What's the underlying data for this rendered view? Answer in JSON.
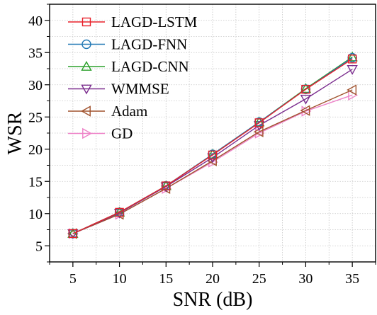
{
  "chart_data": {
    "type": "line",
    "title": "",
    "xlabel": "SNR (dB)",
    "ylabel": "WSR",
    "xlim": [
      2.5,
      37.5
    ],
    "ylim": [
      2.5,
      42.5
    ],
    "xticks": [
      5,
      10,
      15,
      20,
      25,
      30,
      35
    ],
    "yticks": [
      5,
      10,
      15,
      20,
      25,
      30,
      35,
      40
    ],
    "grid": true,
    "legend_position": "top-left",
    "x": [
      5,
      10,
      15,
      20,
      25,
      30,
      35
    ],
    "series": [
      {
        "name": "LAGD-LSTM",
        "color": "#e8202a",
        "marker": "square",
        "values": [
          6.9,
          10.2,
          14.3,
          19.1,
          24.1,
          29.3,
          34.0
        ]
      },
      {
        "name": "LAGD-FNN",
        "color": "#1f77b4",
        "marker": "circle",
        "values": [
          6.9,
          10.2,
          14.3,
          19.2,
          24.2,
          29.3,
          34.2
        ]
      },
      {
        "name": "LAGD-CNN",
        "color": "#2ca02c",
        "marker": "triangle-up",
        "values": [
          6.9,
          10.2,
          14.3,
          19.2,
          24.2,
          29.4,
          34.3
        ]
      },
      {
        "name": "WMMSE",
        "color": "#7b2d8e",
        "marker": "triangle-down",
        "values": [
          6.9,
          10.1,
          14.2,
          18.7,
          23.7,
          27.8,
          32.4
        ]
      },
      {
        "name": "Adam",
        "color": "#a0522d",
        "marker": "triangle-left",
        "values": [
          6.9,
          9.9,
          13.9,
          18.2,
          22.7,
          26.0,
          29.2
        ]
      },
      {
        "name": "GD",
        "color": "#ee82c8",
        "marker": "triangle-right",
        "values": [
          6.9,
          9.9,
          13.9,
          18.0,
          22.5,
          25.9,
          28.4
        ]
      }
    ]
  }
}
